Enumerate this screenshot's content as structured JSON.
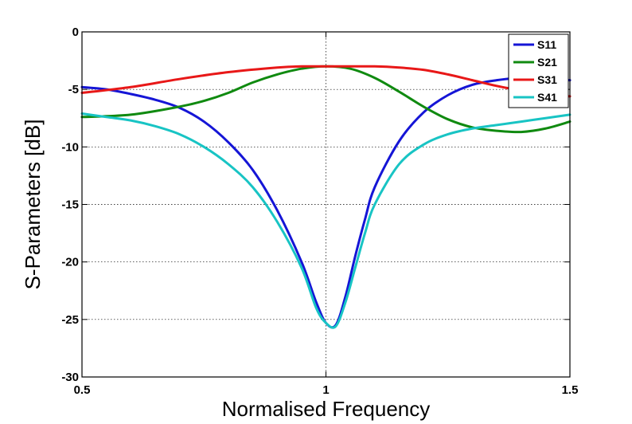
{
  "chart_data": {
    "type": "line",
    "xlabel": "Normalised Frequency",
    "ylabel": "S-Parameters [dB]",
    "xlim": [
      0.5,
      1.5
    ],
    "ylim": [
      -30,
      0
    ],
    "xticks": [
      0.5,
      1,
      1.5
    ],
    "xtick_labels": [
      "0.5",
      "1",
      "1.5"
    ],
    "yticks": [
      0,
      -5,
      -10,
      -15,
      -20,
      -25,
      -30
    ],
    "ytick_labels": [
      "0",
      "-5",
      "-10",
      "-15",
      "-20",
      "-25",
      "-30"
    ],
    "grid": true,
    "legend_position": "top-right",
    "series": [
      {
        "name": "S11",
        "color": "#1515d6",
        "x": [
          0.5,
          0.55,
          0.6,
          0.65,
          0.7,
          0.75,
          0.8,
          0.85,
          0.9,
          0.95,
          0.98,
          1.0,
          1.02,
          1.04,
          1.06,
          1.08,
          1.1,
          1.15,
          1.2,
          1.25,
          1.3,
          1.35,
          1.4,
          1.45,
          1.5
        ],
        "y": [
          -4.8,
          -5.0,
          -5.4,
          -5.9,
          -6.6,
          -7.8,
          -9.6,
          -12.0,
          -15.5,
          -20.0,
          -23.5,
          -25.3,
          -25.5,
          -23.0,
          -19.5,
          -16.3,
          -13.5,
          -9.5,
          -7.0,
          -5.5,
          -4.6,
          -4.2,
          -4.0,
          -4.1,
          -4.2
        ]
      },
      {
        "name": "S21",
        "color": "#108a10",
        "x": [
          0.5,
          0.6,
          0.7,
          0.75,
          0.8,
          0.85,
          0.9,
          0.95,
          1.0,
          1.05,
          1.1,
          1.15,
          1.2,
          1.25,
          1.3,
          1.35,
          1.4,
          1.45,
          1.5
        ],
        "y": [
          -7.4,
          -7.2,
          -6.5,
          -6.0,
          -5.3,
          -4.4,
          -3.7,
          -3.2,
          -3.0,
          -3.2,
          -4.0,
          -5.2,
          -6.5,
          -7.6,
          -8.3,
          -8.6,
          -8.7,
          -8.4,
          -7.8
        ]
      },
      {
        "name": "S31",
        "color": "#e81818",
        "x": [
          0.5,
          0.6,
          0.7,
          0.8,
          0.9,
          0.95,
          1.0,
          1.05,
          1.1,
          1.15,
          1.2,
          1.25,
          1.3,
          1.35,
          1.4,
          1.45,
          1.5
        ],
        "y": [
          -5.3,
          -4.8,
          -4.1,
          -3.5,
          -3.1,
          -3.0,
          -3.0,
          -3.0,
          -3.0,
          -3.1,
          -3.3,
          -3.7,
          -4.2,
          -4.7,
          -5.1,
          -5.4,
          -5.6
        ]
      },
      {
        "name": "S41",
        "color": "#18c4c4",
        "x": [
          0.5,
          0.55,
          0.6,
          0.65,
          0.7,
          0.75,
          0.8,
          0.85,
          0.9,
          0.95,
          0.98,
          1.0,
          1.02,
          1.04,
          1.06,
          1.08,
          1.1,
          1.15,
          1.2,
          1.25,
          1.3,
          1.35,
          1.4,
          1.45,
          1.5
        ],
        "y": [
          -7.1,
          -7.4,
          -7.7,
          -8.2,
          -8.9,
          -10.0,
          -11.5,
          -13.5,
          -16.5,
          -20.5,
          -24.0,
          -25.3,
          -25.6,
          -23.5,
          -20.5,
          -17.5,
          -15.0,
          -11.5,
          -9.8,
          -8.9,
          -8.4,
          -8.1,
          -7.8,
          -7.5,
          -7.2
        ]
      }
    ]
  }
}
